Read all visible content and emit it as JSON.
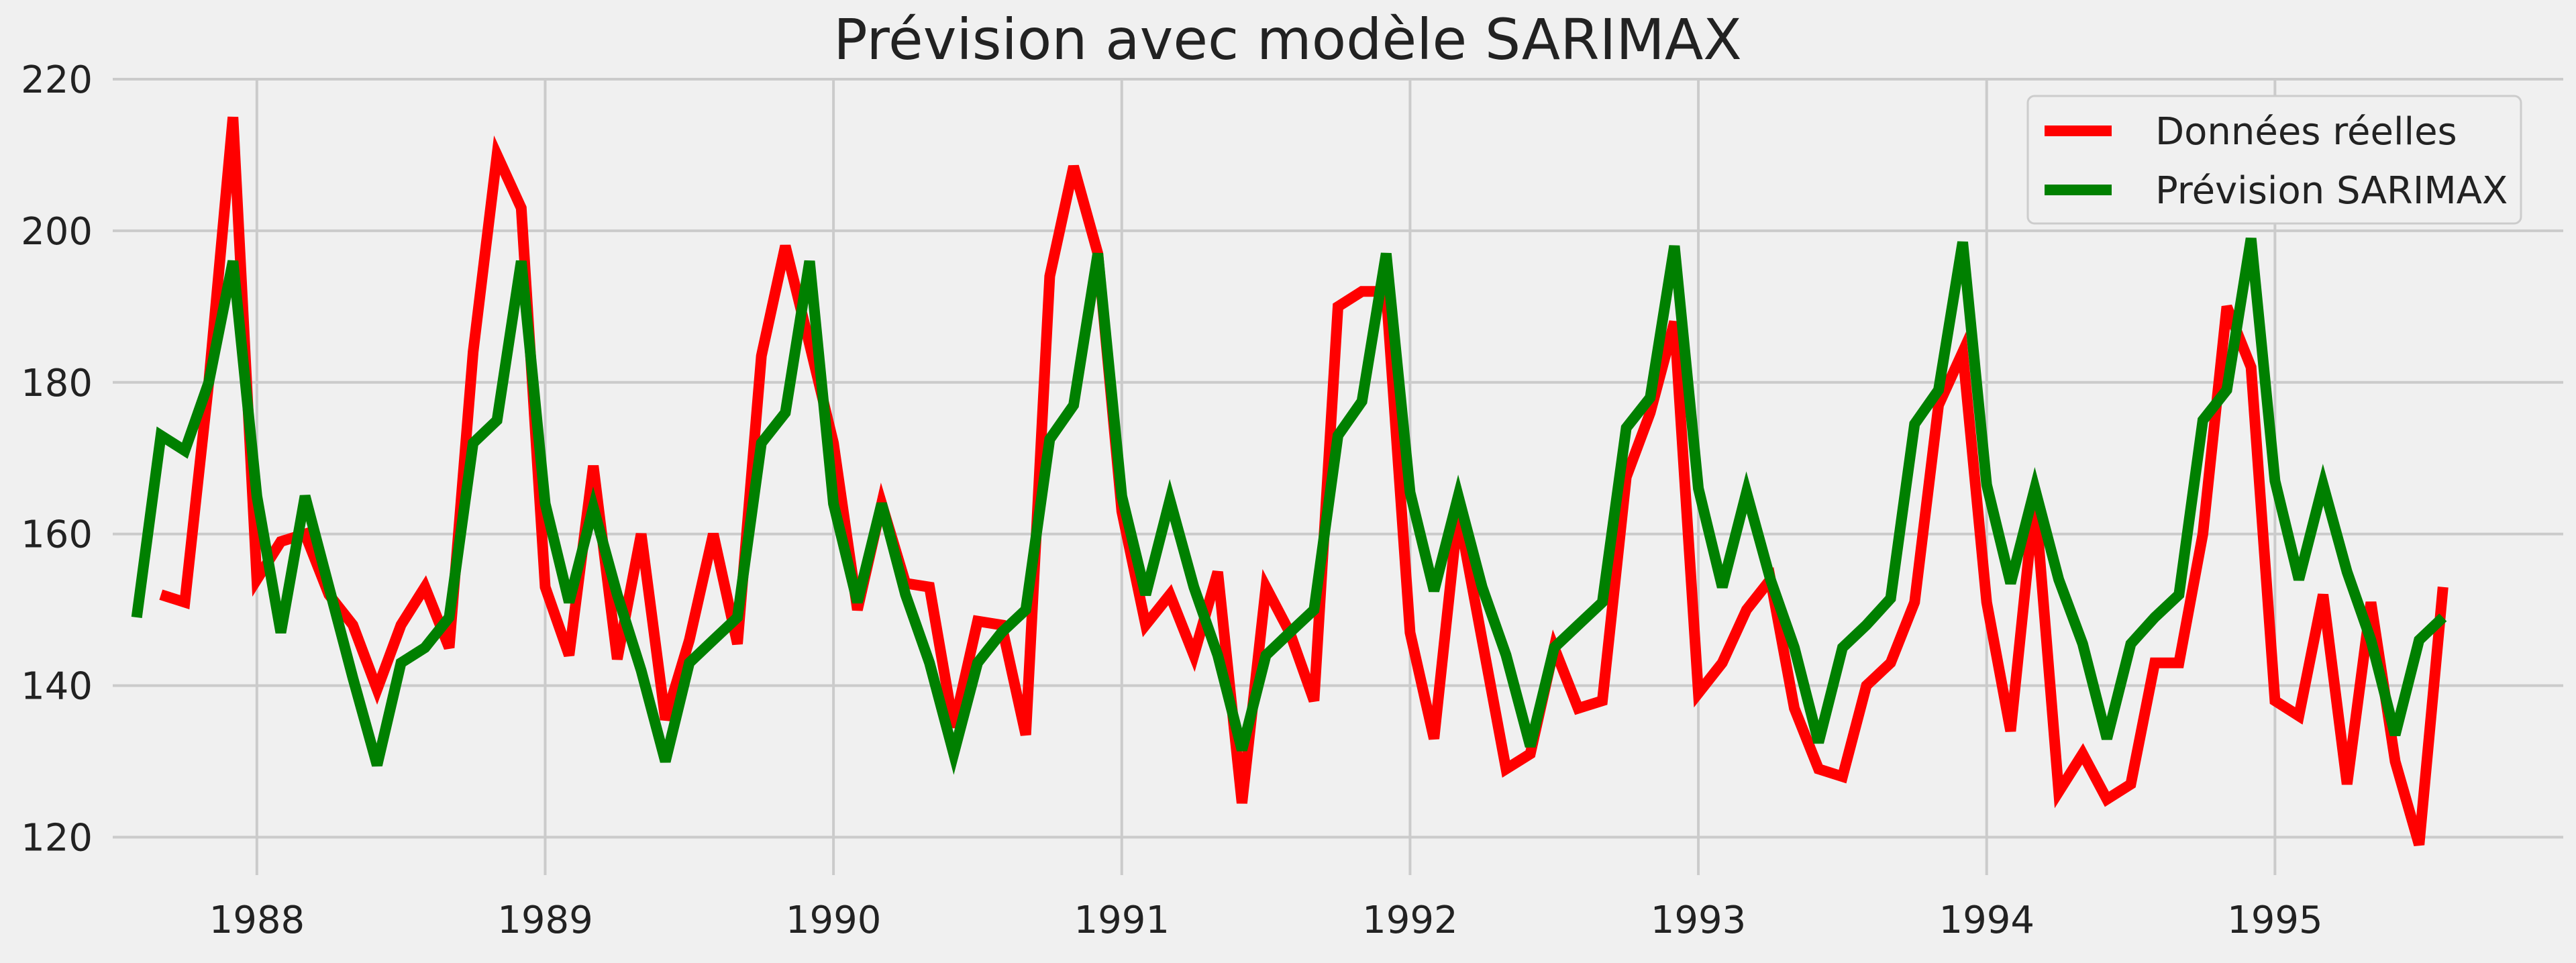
{
  "chart_data": {
    "type": "line",
    "title": "Prévision avec modèle SARIMAX",
    "xlabel": "",
    "ylabel": "",
    "xlim": [
      1987.5,
      1996.0
    ],
    "ylim": [
      115,
      220
    ],
    "x_ticks": [
      1988,
      1989,
      1990,
      1991,
      1992,
      1993,
      1994,
      1995
    ],
    "x_tick_labels": [
      "1988",
      "1989",
      "1990",
      "1991",
      "1992",
      "1993",
      "1994",
      "1995"
    ],
    "y_ticks": [
      120,
      140,
      160,
      180,
      200,
      220
    ],
    "y_tick_labels": [
      "120",
      "140",
      "160",
      "180",
      "200",
      "220"
    ],
    "grid": true,
    "legend_position": "top-right",
    "series": [
      {
        "name": "Données réelles",
        "color": "#ff0000",
        "x": [
          1987.667,
          1987.75,
          1987.833,
          1987.917,
          1988.0,
          1988.083,
          1988.167,
          1988.25,
          1988.333,
          1988.417,
          1988.5,
          1988.583,
          1988.667,
          1988.75,
          1988.833,
          1988.917,
          1989.0,
          1989.083,
          1989.167,
          1989.25,
          1989.333,
          1989.417,
          1989.5,
          1989.583,
          1989.667,
          1989.75,
          1989.833,
          1989.917,
          1990.0,
          1990.083,
          1990.167,
          1990.25,
          1990.333,
          1990.417,
          1990.5,
          1990.583,
          1990.667,
          1990.75,
          1990.833,
          1990.917,
          1991.0,
          1991.083,
          1991.167,
          1991.25,
          1991.333,
          1991.417,
          1991.5,
          1991.583,
          1991.667,
          1991.75,
          1991.833,
          1991.917,
          1992.0,
          1992.083,
          1992.167,
          1992.25,
          1992.333,
          1992.417,
          1992.5,
          1992.583,
          1992.667,
          1992.75,
          1992.833,
          1992.917,
          1993.0,
          1993.083,
          1993.167,
          1993.25,
          1993.333,
          1993.417,
          1993.5,
          1993.583,
          1993.667,
          1993.75,
          1993.833,
          1993.917,
          1994.0,
          1994.083,
          1994.167,
          1994.25,
          1994.333,
          1994.417,
          1994.5,
          1994.583,
          1994.667,
          1994.75,
          1994.833,
          1994.917,
          1995.0,
          1995.083,
          1995.167,
          1995.25,
          1995.333,
          1995.417,
          1995.5,
          1995.583
        ],
        "values": [
          152,
          151,
          180,
          215,
          154,
          159,
          160,
          152,
          148,
          139.5,
          148,
          153,
          145,
          184,
          210,
          203,
          153,
          144,
          169,
          143.5,
          160,
          135.5,
          146,
          160,
          145.5,
          183.5,
          198,
          185,
          172,
          150,
          164,
          153.5,
          153,
          134.5,
          148.5,
          148,
          133.5,
          194,
          208.5,
          197,
          163,
          148,
          152,
          144,
          155,
          124.5,
          153,
          147,
          138,
          190,
          192,
          192,
          147,
          133,
          163,
          146,
          129,
          131,
          145,
          137,
          138,
          167.5,
          176,
          188,
          139,
          143,
          150,
          154,
          137,
          129,
          128,
          140,
          143,
          151,
          177,
          184,
          151,
          134,
          165,
          126,
          131,
          125,
          127,
          143,
          143,
          160,
          190,
          182,
          138,
          136,
          152,
          127,
          151,
          130,
          119,
          153
        ]
      },
      {
        "name": "Prévision SARIMAX",
        "color": "#008000",
        "x": [
          1987.583,
          1987.667,
          1987.75,
          1987.833,
          1987.917,
          1988.0,
          1988.083,
          1988.167,
          1988.25,
          1988.333,
          1988.417,
          1988.5,
          1988.583,
          1988.667,
          1988.75,
          1988.833,
          1988.917,
          1989.0,
          1989.083,
          1989.167,
          1989.25,
          1989.333,
          1989.417,
          1989.5,
          1989.583,
          1989.667,
          1989.75,
          1989.833,
          1989.917,
          1990.0,
          1990.083,
          1990.167,
          1990.25,
          1990.333,
          1990.417,
          1990.5,
          1990.583,
          1990.667,
          1990.75,
          1990.833,
          1990.917,
          1991.0,
          1991.083,
          1991.167,
          1991.25,
          1991.333,
          1991.417,
          1991.5,
          1991.583,
          1991.667,
          1991.75,
          1991.833,
          1991.917,
          1992.0,
          1992.083,
          1992.167,
          1992.25,
          1992.333,
          1992.417,
          1992.5,
          1992.583,
          1992.667,
          1992.75,
          1992.833,
          1992.917,
          1993.0,
          1993.083,
          1993.167,
          1993.25,
          1993.333,
          1993.417,
          1993.5,
          1993.583,
          1993.667,
          1993.75,
          1993.833,
          1993.917,
          1994.0,
          1994.083,
          1994.167,
          1994.25,
          1994.333,
          1994.417,
          1994.5,
          1994.583,
          1994.667,
          1994.75,
          1994.833,
          1994.917,
          1995.0,
          1995.083,
          1995.167,
          1995.25,
          1995.333,
          1995.417,
          1995.5,
          1995.583
        ],
        "values": [
          149,
          173,
          171,
          180,
          196,
          165,
          147,
          165,
          153,
          141,
          129.5,
          143,
          145,
          149,
          172,
          175,
          196,
          164,
          151,
          163.5,
          152,
          142,
          130,
          143,
          146,
          149,
          172,
          176,
          196,
          164,
          151,
          164,
          152,
          143,
          131,
          143,
          147,
          150,
          172.5,
          177,
          197,
          165,
          152,
          164.5,
          153,
          144,
          131.5,
          144,
          147,
          150,
          173,
          177.5,
          197,
          165.5,
          152.5,
          165,
          153,
          144,
          132,
          145,
          148,
          151,
          174,
          178,
          198,
          166,
          153,
          165.5,
          154,
          145,
          132.5,
          145,
          148,
          151.5,
          174.5,
          179,
          198.5,
          166.5,
          153.5,
          166,
          154,
          145.5,
          133,
          145.5,
          149,
          152,
          175,
          179,
          199,
          167,
          154,
          166.5,
          155,
          146,
          133.5,
          146,
          149
        ]
      }
    ]
  }
}
